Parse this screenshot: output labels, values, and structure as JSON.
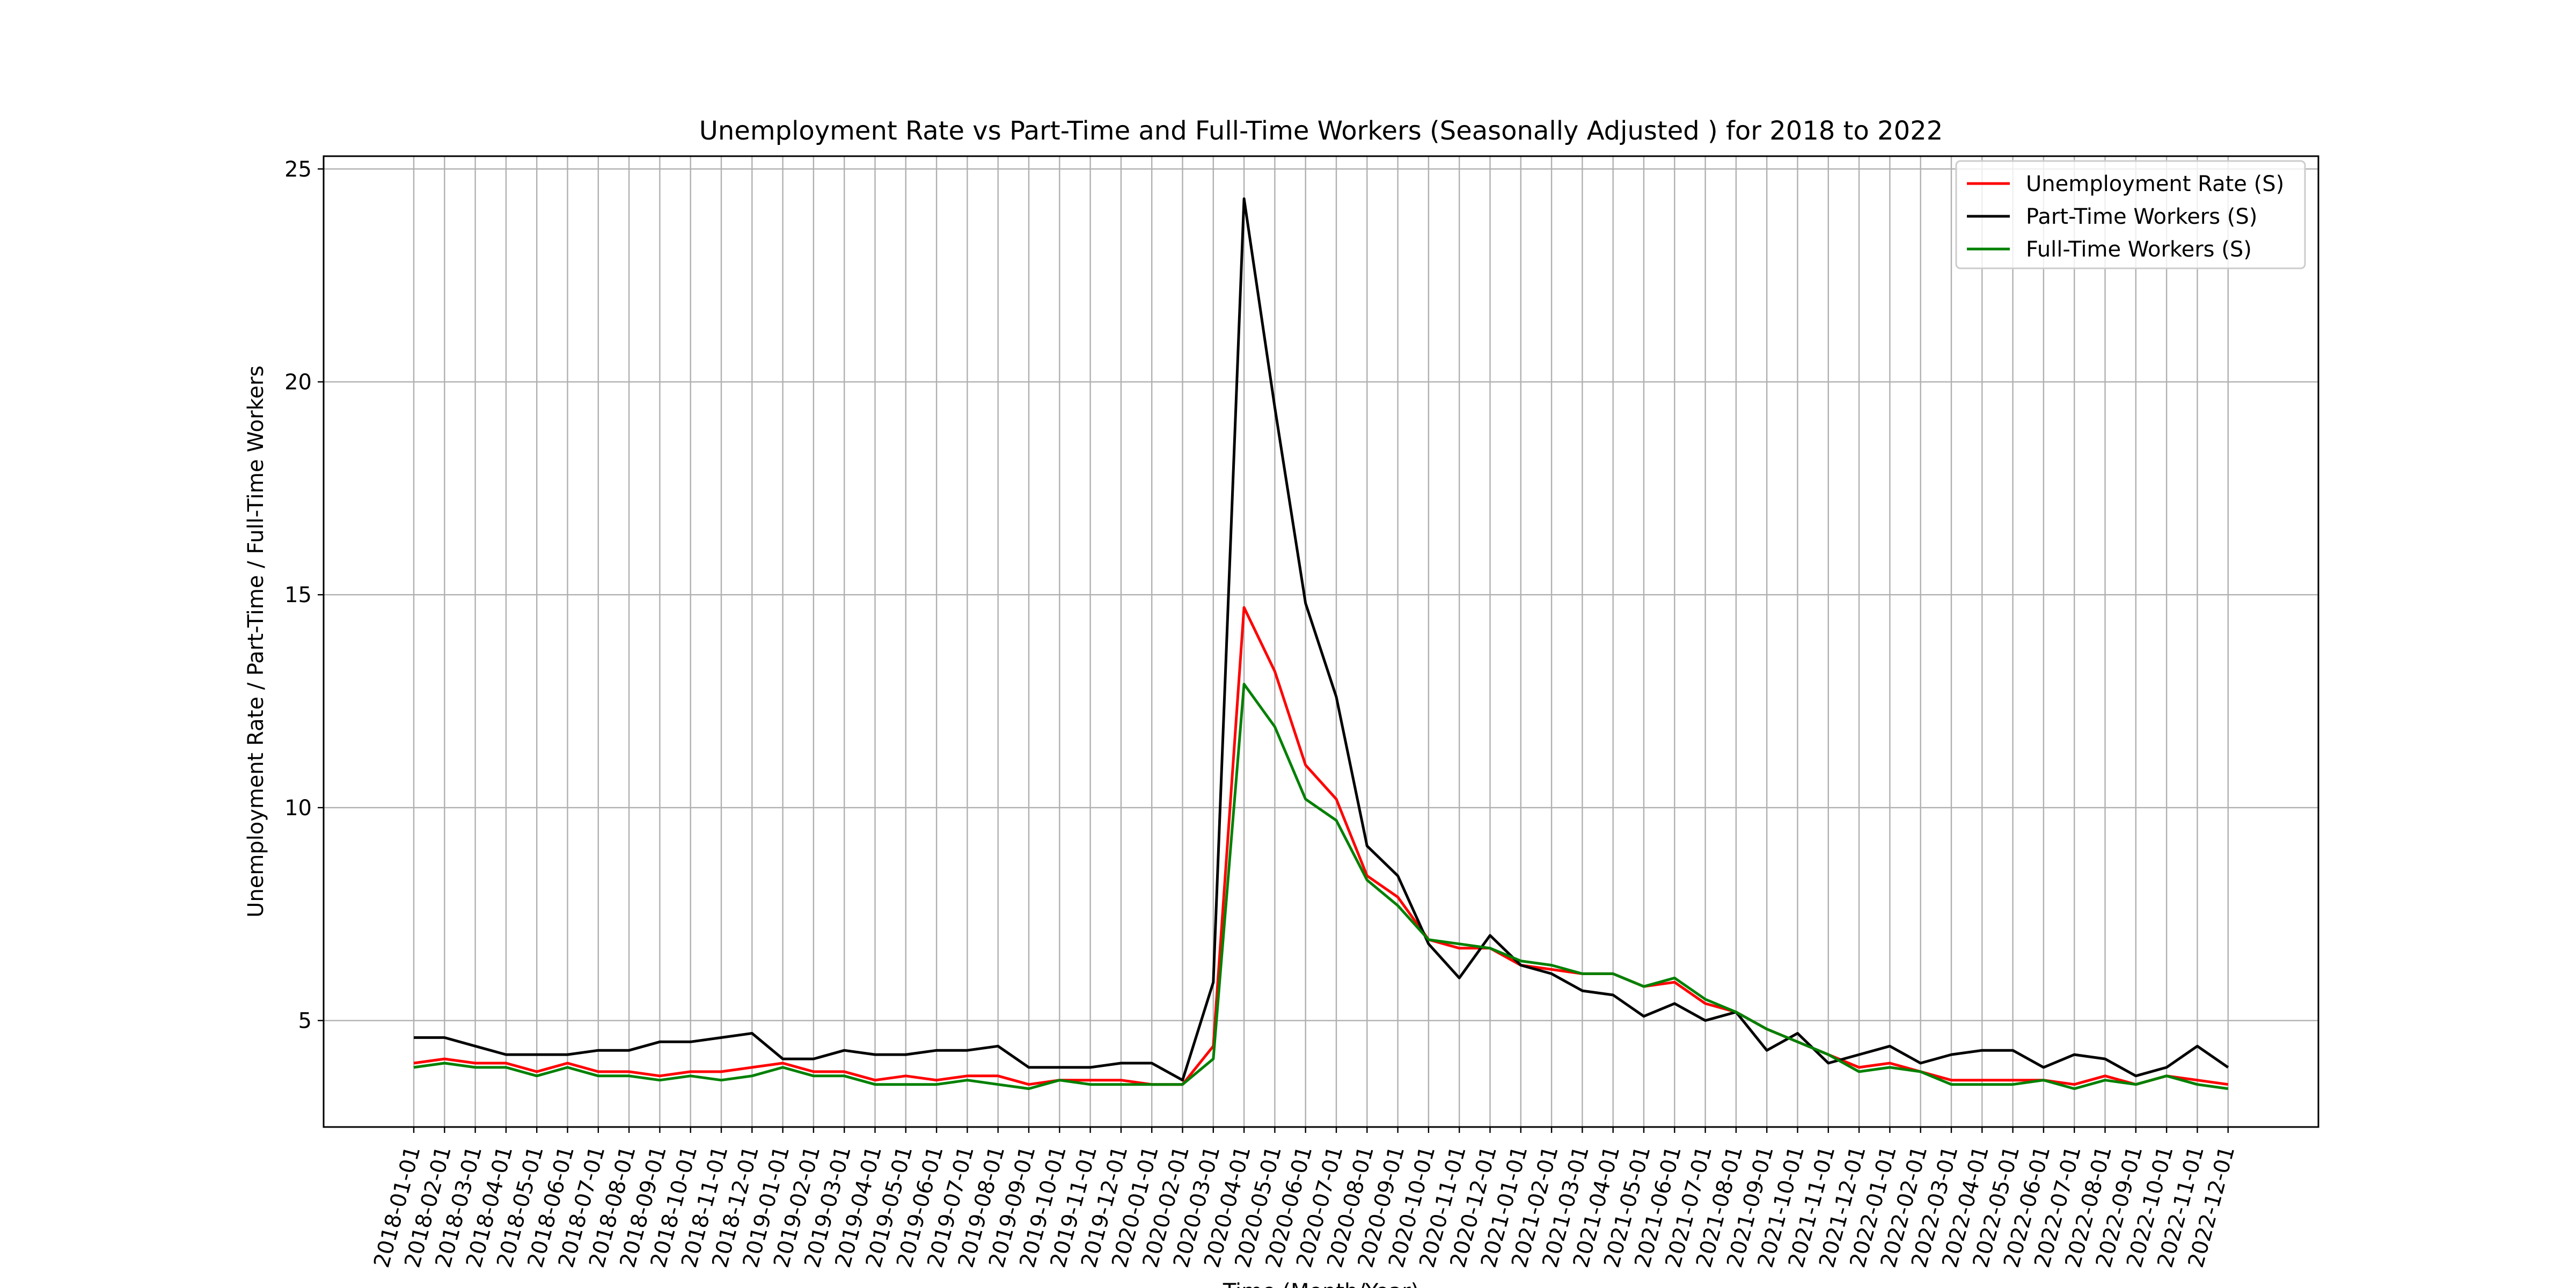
{
  "chart_data": {
    "type": "line",
    "title": "Unemployment Rate vs Part-Time and Full-Time Workers (Seasonally Adjusted ) for 2018 to 2022",
    "xlabel": "Time (Month/Year)",
    "ylabel": "Unemployment Rate / Part-Time / Full-Time Workers",
    "ylim": [
      2.5,
      25.3
    ],
    "yticks": [
      5,
      10,
      15,
      20,
      25
    ],
    "grid": true,
    "legend_position": "top-right",
    "categories": [
      "2018-01-01",
      "2018-02-01",
      "2018-03-01",
      "2018-04-01",
      "2018-05-01",
      "2018-06-01",
      "2018-07-01",
      "2018-08-01",
      "2018-09-01",
      "2018-10-01",
      "2018-11-01",
      "2018-12-01",
      "2019-01-01",
      "2019-02-01",
      "2019-03-01",
      "2019-04-01",
      "2019-05-01",
      "2019-06-01",
      "2019-07-01",
      "2019-08-01",
      "2019-09-01",
      "2019-10-01",
      "2019-11-01",
      "2019-12-01",
      "2020-01-01",
      "2020-02-01",
      "2020-03-01",
      "2020-04-01",
      "2020-05-01",
      "2020-06-01",
      "2020-07-01",
      "2020-08-01",
      "2020-09-01",
      "2020-10-01",
      "2020-11-01",
      "2020-12-01",
      "2021-01-01",
      "2021-02-01",
      "2021-03-01",
      "2021-04-01",
      "2021-05-01",
      "2021-06-01",
      "2021-07-01",
      "2021-08-01",
      "2021-09-01",
      "2021-10-01",
      "2021-11-01",
      "2021-12-01",
      "2022-01-01",
      "2022-02-01",
      "2022-03-01",
      "2022-04-01",
      "2022-05-01",
      "2022-06-01",
      "2022-07-01",
      "2022-08-01",
      "2022-09-01",
      "2022-10-01",
      "2022-11-01",
      "2022-12-01"
    ],
    "series": [
      {
        "name": "Unemployment Rate (S)",
        "color": "#ff0000",
        "values": [
          4.0,
          4.1,
          4.0,
          4.0,
          3.8,
          4.0,
          3.8,
          3.8,
          3.7,
          3.8,
          3.8,
          3.9,
          4.0,
          3.8,
          3.8,
          3.6,
          3.7,
          3.6,
          3.7,
          3.7,
          3.5,
          3.6,
          3.6,
          3.6,
          3.5,
          3.5,
          4.4,
          14.7,
          13.2,
          11.0,
          10.2,
          8.4,
          7.9,
          6.9,
          6.7,
          6.7,
          6.3,
          6.2,
          6.1,
          6.1,
          5.8,
          5.9,
          5.4,
          5.2,
          4.8,
          4.5,
          4.2,
          3.9,
          4.0,
          3.8,
          3.6,
          3.6,
          3.6,
          3.6,
          3.5,
          3.7,
          3.5,
          3.7,
          3.6,
          3.5
        ]
      },
      {
        "name": "Part-Time Workers (S)",
        "color": "#000000",
        "values": [
          4.6,
          4.6,
          4.4,
          4.2,
          4.2,
          4.2,
          4.3,
          4.3,
          4.5,
          4.5,
          4.6,
          4.7,
          4.1,
          4.1,
          4.3,
          4.2,
          4.2,
          4.3,
          4.3,
          4.4,
          3.9,
          3.9,
          3.9,
          4.0,
          4.0,
          3.6,
          5.9,
          24.3,
          19.4,
          14.8,
          12.6,
          9.1,
          8.4,
          6.8,
          6.0,
          7.0,
          6.3,
          6.1,
          5.7,
          5.6,
          5.1,
          5.4,
          5.0,
          5.2,
          4.3,
          4.7,
          4.0,
          4.2,
          4.4,
          4.0,
          4.2,
          4.3,
          4.3,
          3.9,
          4.2,
          4.1,
          3.7,
          3.9,
          4.4,
          3.9
        ]
      },
      {
        "name": "Full-Time Workers (S)",
        "color": "#008000",
        "values": [
          3.9,
          4.0,
          3.9,
          3.9,
          3.7,
          3.9,
          3.7,
          3.7,
          3.6,
          3.7,
          3.6,
          3.7,
          3.9,
          3.7,
          3.7,
          3.5,
          3.5,
          3.5,
          3.6,
          3.5,
          3.4,
          3.6,
          3.5,
          3.5,
          3.5,
          3.5,
          4.1,
          12.9,
          11.9,
          10.2,
          9.7,
          8.3,
          7.7,
          6.9,
          6.8,
          6.7,
          6.4,
          6.3,
          6.1,
          6.1,
          5.8,
          6.0,
          5.5,
          5.2,
          4.8,
          4.5,
          4.2,
          3.8,
          3.9,
          3.8,
          3.5,
          3.5,
          3.5,
          3.6,
          3.4,
          3.6,
          3.5,
          3.7,
          3.5,
          3.4
        ]
      }
    ]
  }
}
